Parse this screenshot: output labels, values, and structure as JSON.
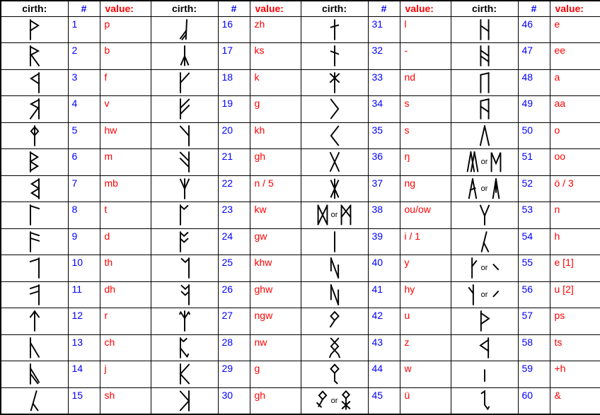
{
  "table": {
    "headers": {
      "cirth": "cirth:",
      "num": "#",
      "value": "value:"
    },
    "or_label": "or",
    "colors": {
      "number_blue": "#0000ff",
      "value_red": "#ff0000",
      "grid_black": "#000000",
      "background": "#ffffff"
    },
    "groups": [
      {
        "rows": [
          {
            "glyphs": [
              "c1"
            ],
            "num": "1",
            "value": "p"
          },
          {
            "glyphs": [
              "c2"
            ],
            "num": "2",
            "value": "b"
          },
          {
            "glyphs": [
              "c3"
            ],
            "num": "3",
            "value": "f"
          },
          {
            "glyphs": [
              "c4"
            ],
            "num": "4",
            "value": "v"
          },
          {
            "glyphs": [
              "c5"
            ],
            "num": "5",
            "value": "hw"
          },
          {
            "glyphs": [
              "c6"
            ],
            "num": "6",
            "value": "m"
          },
          {
            "glyphs": [
              "c7"
            ],
            "num": "7",
            "value": "mb"
          },
          {
            "glyphs": [
              "c8"
            ],
            "num": "8",
            "value": "t"
          },
          {
            "glyphs": [
              "c9"
            ],
            "num": "9",
            "value": "d"
          },
          {
            "glyphs": [
              "c10"
            ],
            "num": "10",
            "value": "th"
          },
          {
            "glyphs": [
              "c11"
            ],
            "num": "11",
            "value": "dh"
          },
          {
            "glyphs": [
              "c12"
            ],
            "num": "12",
            "value": "r"
          },
          {
            "glyphs": [
              "c13"
            ],
            "num": "13",
            "value": "ch"
          },
          {
            "glyphs": [
              "c14"
            ],
            "num": "14",
            "value": "j"
          },
          {
            "glyphs": [
              "c15"
            ],
            "num": "15",
            "value": "sh"
          }
        ]
      },
      {
        "rows": [
          {
            "glyphs": [
              "c16"
            ],
            "num": "16",
            "value": "zh"
          },
          {
            "glyphs": [
              "c17"
            ],
            "num": "17",
            "value": "ks"
          },
          {
            "glyphs": [
              "c18"
            ],
            "num": "18",
            "value": "k"
          },
          {
            "glyphs": [
              "c19"
            ],
            "num": "19",
            "value": "g"
          },
          {
            "glyphs": [
              "c20"
            ],
            "num": "20",
            "value": "kh"
          },
          {
            "glyphs": [
              "c21"
            ],
            "num": "21",
            "value": "gh"
          },
          {
            "glyphs": [
              "c22"
            ],
            "num": "22",
            "value": "n / 5"
          },
          {
            "glyphs": [
              "c23"
            ],
            "num": "23",
            "value": "kw"
          },
          {
            "glyphs": [
              "c24"
            ],
            "num": "24",
            "value": "gw"
          },
          {
            "glyphs": [
              "c25"
            ],
            "num": "25",
            "value": "khw"
          },
          {
            "glyphs": [
              "c26"
            ],
            "num": "26",
            "value": "ghw"
          },
          {
            "glyphs": [
              "c27"
            ],
            "num": "27",
            "value": "ngw"
          },
          {
            "glyphs": [
              "c28"
            ],
            "num": "28",
            "value": "nw"
          },
          {
            "glyphs": [
              "c29"
            ],
            "num": "29",
            "value": "g"
          },
          {
            "glyphs": [
              "c30"
            ],
            "num": "30",
            "value": "gh"
          }
        ]
      },
      {
        "rows": [
          {
            "glyphs": [
              "c31"
            ],
            "num": "31",
            "value": "l"
          },
          {
            "glyphs": [
              "c32"
            ],
            "num": "32",
            "value": "-"
          },
          {
            "glyphs": [
              "c33"
            ],
            "num": "33",
            "value": "nd"
          },
          {
            "glyphs": [
              "c34"
            ],
            "num": "34",
            "value": "s"
          },
          {
            "glyphs": [
              "c35"
            ],
            "num": "35",
            "value": "s"
          },
          {
            "glyphs": [
              "c36"
            ],
            "num": "36",
            "value": "ŋ"
          },
          {
            "glyphs": [
              "c37"
            ],
            "num": "37",
            "value": "ng"
          },
          {
            "glyphs": [
              "c38a",
              "c38b"
            ],
            "num": "38",
            "value": "ou/ow"
          },
          {
            "glyphs": [
              "c39"
            ],
            "num": "39",
            "value": "i / 1"
          },
          {
            "glyphs": [
              "c40"
            ],
            "num": "40",
            "value": "y"
          },
          {
            "glyphs": [
              "c41"
            ],
            "num": "41",
            "value": "hy"
          },
          {
            "glyphs": [
              "c42"
            ],
            "num": "42",
            "value": "u"
          },
          {
            "glyphs": [
              "c43"
            ],
            "num": "43",
            "value": "z"
          },
          {
            "glyphs": [
              "c44"
            ],
            "num": "44",
            "value": "w"
          },
          {
            "glyphs": [
              "c45a",
              "c45b"
            ],
            "num": "45",
            "value": "ü"
          }
        ]
      },
      {
        "rows": [
          {
            "glyphs": [
              "c46"
            ],
            "num": "46",
            "value": "e"
          },
          {
            "glyphs": [
              "c47"
            ],
            "num": "47",
            "value": "ee"
          },
          {
            "glyphs": [
              "c48"
            ],
            "num": "48",
            "value": "a"
          },
          {
            "glyphs": [
              "c49"
            ],
            "num": "49",
            "value": "aa"
          },
          {
            "glyphs": [
              "c50"
            ],
            "num": "50",
            "value": "o"
          },
          {
            "glyphs": [
              "c51a",
              "c51b"
            ],
            "num": "51",
            "value": "oo"
          },
          {
            "glyphs": [
              "c52a",
              "c52b"
            ],
            "num": "52",
            "value": "ö / 3"
          },
          {
            "glyphs": [
              "c53"
            ],
            "num": "53",
            "value": "n"
          },
          {
            "glyphs": [
              "c54"
            ],
            "num": "54",
            "value": "h"
          },
          {
            "glyphs": [
              "c55a",
              "c55b"
            ],
            "num": "55",
            "value": "e [1]"
          },
          {
            "glyphs": [
              "c56a",
              "c56b"
            ],
            "num": "56",
            "value": "u [2]"
          },
          {
            "glyphs": [
              "c57"
            ],
            "num": "57",
            "value": "ps"
          },
          {
            "glyphs": [
              "c58"
            ],
            "num": "58",
            "value": "ts"
          },
          {
            "glyphs": [
              "c59"
            ],
            "num": "59",
            "value": "+h"
          },
          {
            "glyphs": [
              "c60"
            ],
            "num": "60",
            "value": "&"
          }
        ]
      }
    ]
  }
}
